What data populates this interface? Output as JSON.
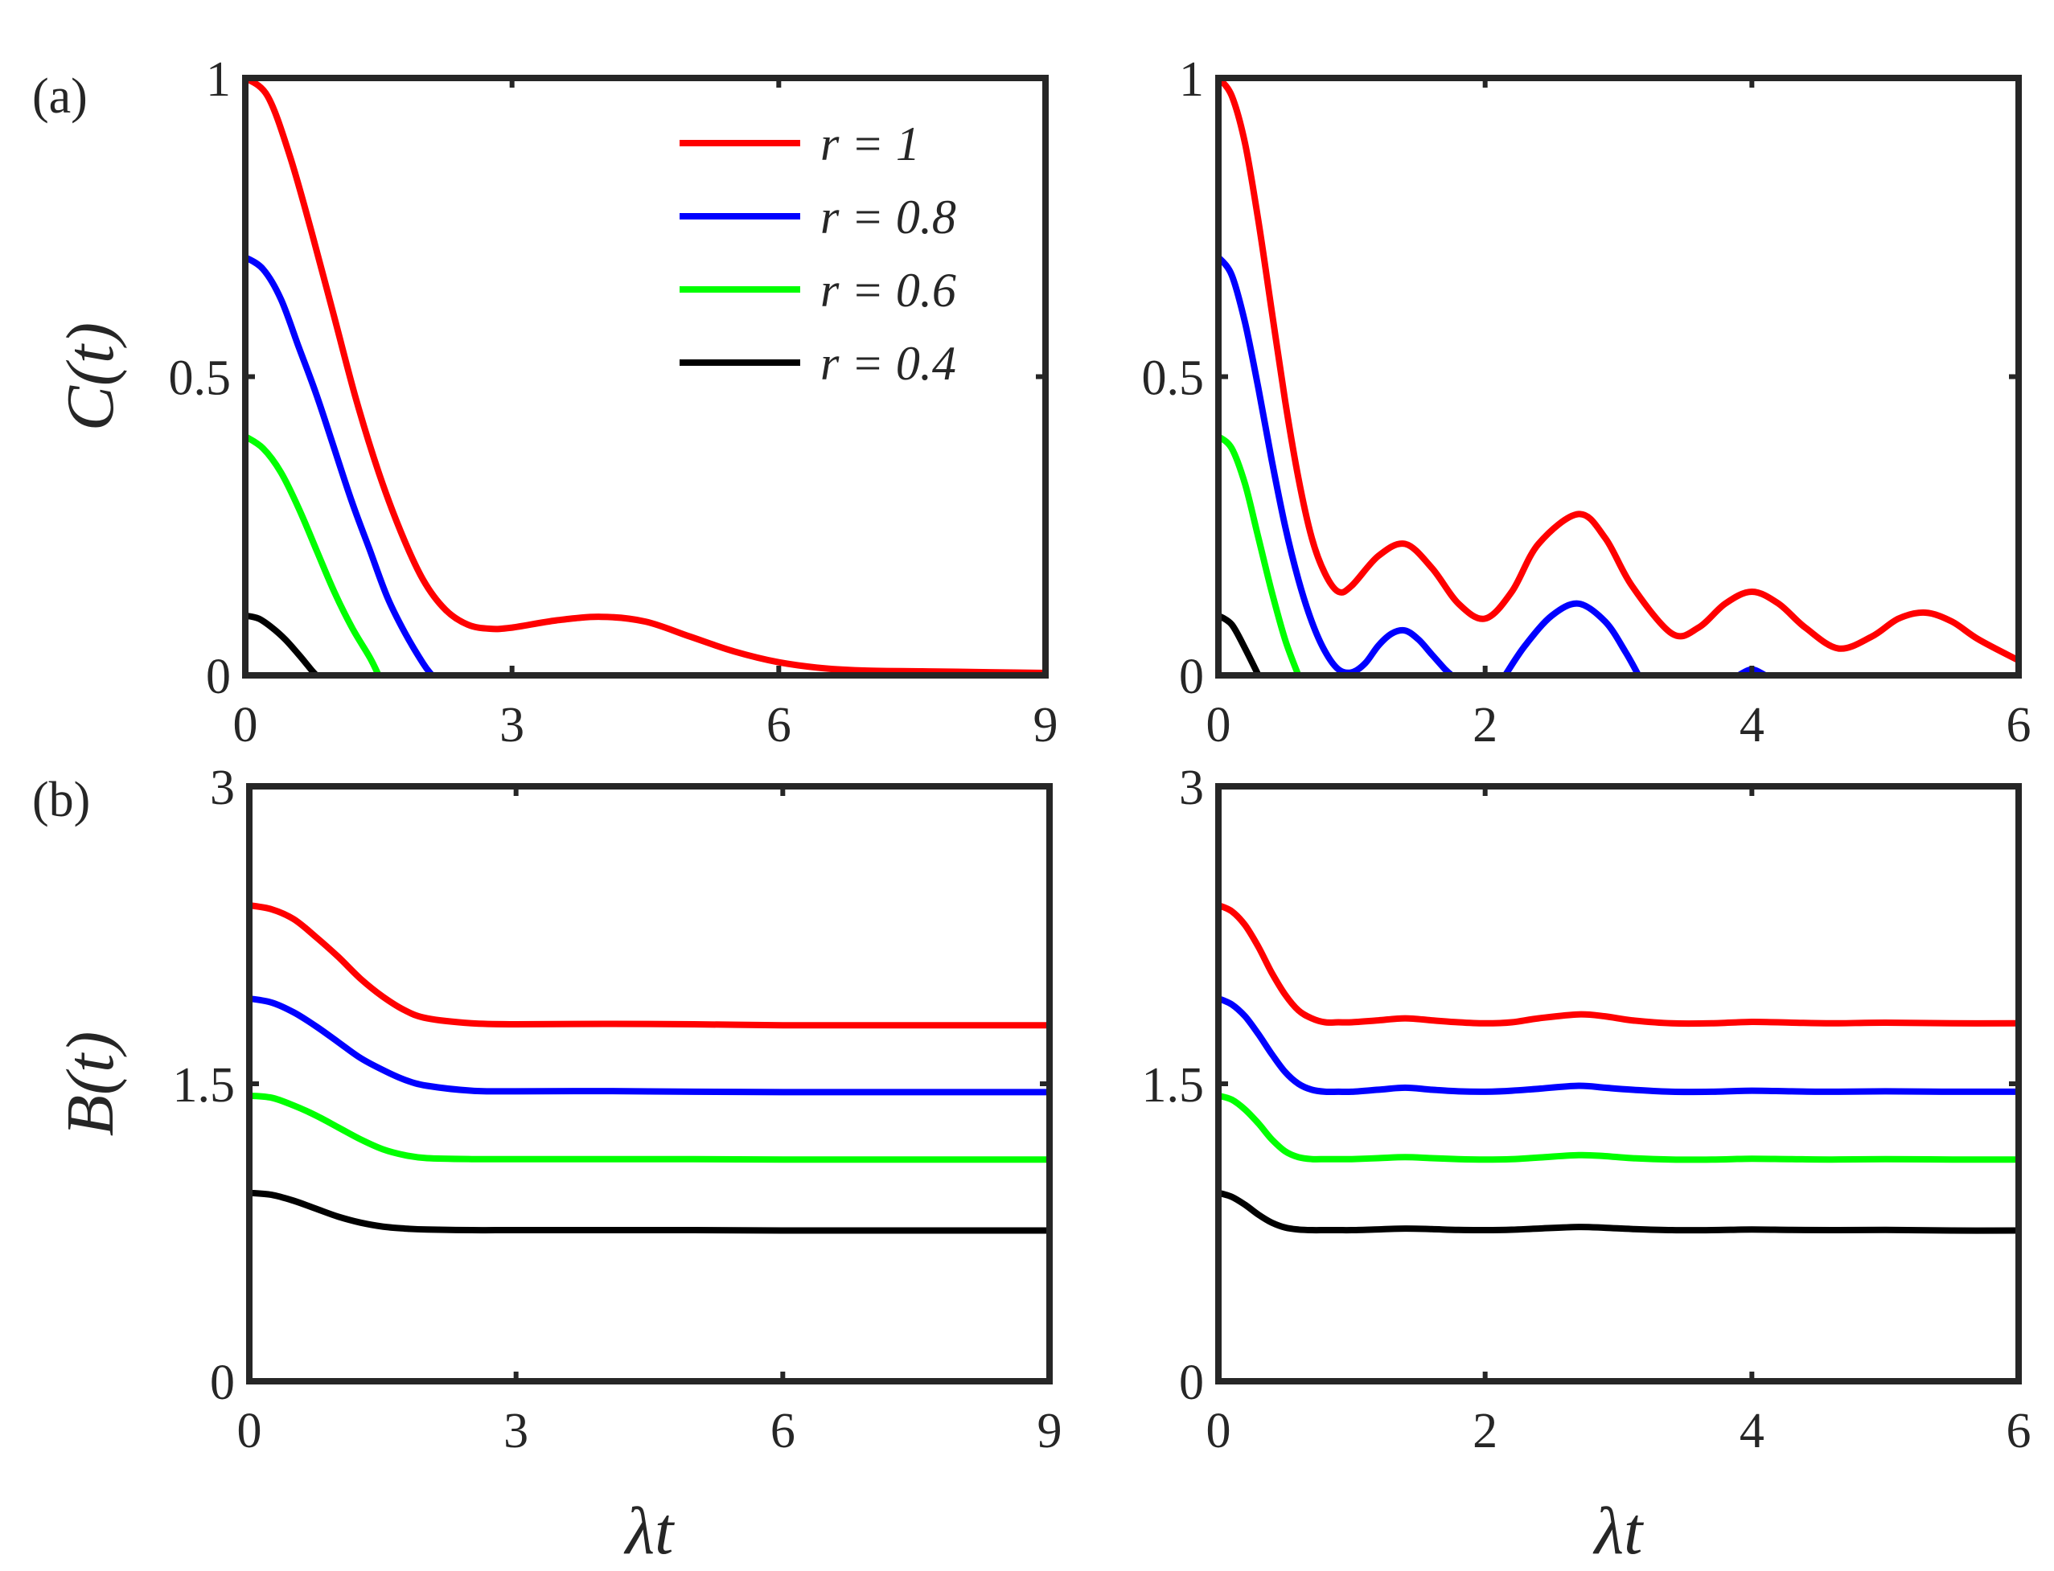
{
  "figure": {
    "panel_labels": [
      "(a)",
      "(b)"
    ],
    "legend": [
      {
        "label": "r = 1",
        "color": "#ff0000"
      },
      {
        "label": "r = 0.8",
        "color": "#0000ff"
      },
      {
        "label": "r = 0.6",
        "color": "#00ff00"
      },
      {
        "label": "r = 0.4",
        "color": "#000000"
      }
    ]
  },
  "chart_data": [
    {
      "id": "a-left",
      "type": "line",
      "ylabel": "C(t)",
      "xlabel": "",
      "xlim": [
        0,
        9
      ],
      "ylim": [
        0,
        1
      ],
      "xticks": [
        0,
        3,
        6,
        9
      ],
      "xtick_labels": [
        "0",
        "3",
        "6",
        "9"
      ],
      "yticks": [
        0,
        0.5,
        1
      ],
      "ytick_labels": [
        "0",
        "0.5",
        "1"
      ],
      "series": [
        {
          "name": "r = 1",
          "color": "#ff0000",
          "x": [
            0,
            0.25,
            0.5,
            0.75,
            1.0,
            1.25,
            1.5,
            1.75,
            2.0,
            2.25,
            2.5,
            2.75,
            3.0,
            3.5,
            4.0,
            4.5,
            5.0,
            5.5,
            6.0,
            6.5,
            7.0,
            8.0,
            9.0
          ],
          "y": [
            1.0,
            0.97,
            0.87,
            0.74,
            0.6,
            0.46,
            0.34,
            0.24,
            0.16,
            0.11,
            0.085,
            0.078,
            0.08,
            0.092,
            0.098,
            0.09,
            0.065,
            0.04,
            0.022,
            0.012,
            0.008,
            0.006,
            0.004
          ]
        },
        {
          "name": "r = 0.8",
          "color": "#0000ff",
          "x": [
            0,
            0.2,
            0.4,
            0.6,
            0.8,
            1.0,
            1.2,
            1.4,
            1.6,
            1.8,
            2.0,
            2.1
          ],
          "y": [
            0.7,
            0.68,
            0.63,
            0.55,
            0.47,
            0.38,
            0.29,
            0.21,
            0.13,
            0.07,
            0.02,
            0.0
          ]
        },
        {
          "name": "r = 0.6",
          "color": "#00ff00",
          "x": [
            0,
            0.2,
            0.4,
            0.6,
            0.8,
            1.0,
            1.2,
            1.4,
            1.5
          ],
          "y": [
            0.4,
            0.38,
            0.34,
            0.28,
            0.21,
            0.14,
            0.08,
            0.03,
            0.0
          ]
        },
        {
          "name": "r = 0.4",
          "color": "#000000",
          "x": [
            0,
            0.15,
            0.3,
            0.45,
            0.6,
            0.75,
            0.8
          ],
          "y": [
            0.1,
            0.095,
            0.08,
            0.06,
            0.035,
            0.008,
            0.0
          ]
        }
      ]
    },
    {
      "id": "a-right",
      "type": "line",
      "ylabel": "",
      "xlabel": "",
      "xlim": [
        0,
        6
      ],
      "ylim": [
        0,
        1
      ],
      "xticks": [
        0,
        2,
        4,
        6
      ],
      "xtick_labels": [
        "0",
        "2",
        "4",
        "6"
      ],
      "yticks": [
        0,
        0.5,
        1
      ],
      "ytick_labels": [
        "0",
        "0.5",
        "1"
      ],
      "series": [
        {
          "name": "r = 1",
          "color": "#ff0000",
          "x": [
            0,
            0.1,
            0.2,
            0.3,
            0.4,
            0.5,
            0.6,
            0.7,
            0.8,
            0.9,
            1.0,
            1.2,
            1.4,
            1.6,
            1.8,
            2.0,
            2.2,
            2.4,
            2.7,
            2.9,
            3.1,
            3.4,
            3.6,
            3.8,
            4.0,
            4.2,
            4.4,
            4.65,
            4.9,
            5.1,
            5.3,
            5.5,
            5.7,
            6.0
          ],
          "y": [
            1.0,
            0.97,
            0.89,
            0.76,
            0.61,
            0.46,
            0.33,
            0.23,
            0.17,
            0.14,
            0.15,
            0.2,
            0.22,
            0.18,
            0.12,
            0.095,
            0.14,
            0.22,
            0.27,
            0.23,
            0.15,
            0.07,
            0.08,
            0.12,
            0.14,
            0.12,
            0.08,
            0.045,
            0.065,
            0.095,
            0.105,
            0.09,
            0.06,
            0.025
          ]
        },
        {
          "name": "r = 0.8",
          "color": "#0000ff",
          "x": [
            0,
            0.1,
            0.2,
            0.3,
            0.4,
            0.5,
            0.6,
            0.7,
            0.8,
            0.9,
            1.0,
            1.1,
            1.2,
            1.3,
            1.4,
            1.5,
            1.6,
            1.7,
            1.75
          ],
          "y": [
            0.7,
            0.67,
            0.59,
            0.48,
            0.36,
            0.25,
            0.16,
            0.09,
            0.04,
            0.01,
            0.005,
            0.02,
            0.05,
            0.07,
            0.075,
            0.06,
            0.035,
            0.01,
            0.0
          ]
        },
        {
          "name": "r = 0.8",
          "color": "#0000ff",
          "x": [
            2.15,
            2.3,
            2.5,
            2.7,
            2.9,
            3.05,
            3.15
          ],
          "y": [
            0.0,
            0.05,
            0.1,
            0.12,
            0.09,
            0.04,
            0.0
          ]
        },
        {
          "name": "r = 0.8",
          "color": "#0000ff",
          "x": [
            3.9,
            4.0,
            4.1
          ],
          "y": [
            0.0,
            0.01,
            0.0
          ]
        },
        {
          "name": "r = 0.6",
          "color": "#00ff00",
          "x": [
            0,
            0.1,
            0.2,
            0.3,
            0.4,
            0.5,
            0.6
          ],
          "y": [
            0.4,
            0.38,
            0.32,
            0.23,
            0.14,
            0.06,
            0.0
          ]
        },
        {
          "name": "r = 0.4",
          "color": "#000000",
          "x": [
            0,
            0.1,
            0.2,
            0.3
          ],
          "y": [
            0.1,
            0.085,
            0.045,
            0.0
          ]
        }
      ]
    },
    {
      "id": "b-left",
      "type": "line",
      "ylabel": "B(t)",
      "xlabel": "λt",
      "xlim": [
        0,
        9
      ],
      "ylim": [
        0,
        3
      ],
      "xticks": [
        0,
        3,
        6,
        9
      ],
      "xtick_labels": [
        "0",
        "3",
        "6",
        "9"
      ],
      "yticks": [
        0,
        1.5,
        3
      ],
      "ytick_labels": [
        "0",
        "1.5",
        "3"
      ],
      "series": [
        {
          "name": "r = 1",
          "color": "#ff0000",
          "x": [
            0,
            0.25,
            0.5,
            0.75,
            1.0,
            1.25,
            1.5,
            1.75,
            2.0,
            2.5,
            3.0,
            4.0,
            5.0,
            6.0,
            7.0,
            8.0,
            9.0
          ],
          "y": [
            2.4,
            2.38,
            2.33,
            2.24,
            2.14,
            2.03,
            1.94,
            1.87,
            1.83,
            1.805,
            1.8,
            1.802,
            1.8,
            1.795,
            1.795,
            1.795,
            1.795
          ]
        },
        {
          "name": "r = 0.8",
          "color": "#0000ff",
          "x": [
            0,
            0.25,
            0.5,
            0.75,
            1.0,
            1.25,
            1.5,
            1.75,
            2.0,
            2.5,
            3.0,
            4.0,
            5.0,
            6.0,
            7.0,
            8.0,
            9.0
          ],
          "y": [
            1.93,
            1.91,
            1.86,
            1.79,
            1.71,
            1.63,
            1.57,
            1.52,
            1.49,
            1.465,
            1.462,
            1.463,
            1.46,
            1.458,
            1.458,
            1.458,
            1.458
          ]
        },
        {
          "name": "r = 0.6",
          "color": "#00ff00",
          "x": [
            0,
            0.25,
            0.5,
            0.75,
            1.0,
            1.25,
            1.5,
            1.75,
            2.0,
            2.5,
            3.0,
            4.0,
            5.0,
            6.0,
            7.0,
            8.0,
            9.0
          ],
          "y": [
            1.44,
            1.43,
            1.39,
            1.34,
            1.28,
            1.22,
            1.17,
            1.14,
            1.125,
            1.12,
            1.12,
            1.12,
            1.12,
            1.118,
            1.118,
            1.118,
            1.118
          ]
        },
        {
          "name": "r = 0.4",
          "color": "#000000",
          "x": [
            0,
            0.25,
            0.5,
            0.75,
            1.0,
            1.25,
            1.5,
            1.75,
            2.0,
            2.5,
            3.0,
            4.0,
            5.0,
            6.0,
            7.0,
            8.0,
            9.0
          ],
          "y": [
            0.95,
            0.94,
            0.91,
            0.87,
            0.83,
            0.8,
            0.78,
            0.77,
            0.765,
            0.762,
            0.762,
            0.762,
            0.762,
            0.76,
            0.76,
            0.76,
            0.76
          ]
        }
      ]
    },
    {
      "id": "b-right",
      "type": "line",
      "ylabel": "",
      "xlabel": "λt",
      "xlim": [
        0,
        6
      ],
      "ylim": [
        0,
        3
      ],
      "xticks": [
        0,
        2,
        4,
        6
      ],
      "xtick_labels": [
        "0",
        "2",
        "4",
        "6"
      ],
      "yticks": [
        0,
        1.5,
        3
      ],
      "ytick_labels": [
        "0",
        "1.5",
        "3"
      ],
      "series": [
        {
          "name": "r = 1",
          "color": "#ff0000",
          "x": [
            0,
            0.1,
            0.2,
            0.3,
            0.4,
            0.5,
            0.6,
            0.7,
            0.8,
            0.9,
            1.0,
            1.2,
            1.4,
            1.6,
            1.8,
            2.0,
            2.2,
            2.4,
            2.7,
            2.9,
            3.1,
            3.4,
            3.7,
            4.0,
            4.3,
            4.6,
            5.0,
            5.5,
            6.0
          ],
          "y": [
            2.4,
            2.37,
            2.3,
            2.19,
            2.06,
            1.95,
            1.87,
            1.83,
            1.81,
            1.81,
            1.81,
            1.82,
            1.83,
            1.82,
            1.81,
            1.805,
            1.81,
            1.83,
            1.85,
            1.84,
            1.82,
            1.805,
            1.805,
            1.812,
            1.808,
            1.805,
            1.808,
            1.805,
            1.805
          ]
        },
        {
          "name": "r = 0.8",
          "color": "#0000ff",
          "x": [
            0,
            0.1,
            0.2,
            0.3,
            0.4,
            0.5,
            0.6,
            0.7,
            0.8,
            0.9,
            1.0,
            1.2,
            1.4,
            1.6,
            1.8,
            2.0,
            2.2,
            2.4,
            2.7,
            2.9,
            3.1,
            3.4,
            3.7,
            4.0,
            4.3,
            4.6,
            5.0,
            5.5,
            6.0
          ],
          "y": [
            1.93,
            1.9,
            1.84,
            1.75,
            1.65,
            1.56,
            1.5,
            1.47,
            1.46,
            1.46,
            1.46,
            1.47,
            1.48,
            1.47,
            1.462,
            1.46,
            1.465,
            1.475,
            1.49,
            1.48,
            1.47,
            1.46,
            1.46,
            1.465,
            1.462,
            1.46,
            1.462,
            1.46,
            1.46
          ]
        },
        {
          "name": "r = 0.6",
          "color": "#00ff00",
          "x": [
            0,
            0.1,
            0.2,
            0.3,
            0.4,
            0.5,
            0.6,
            0.7,
            0.8,
            0.9,
            1.0,
            1.2,
            1.4,
            1.6,
            1.8,
            2.0,
            2.2,
            2.4,
            2.7,
            2.9,
            3.1,
            3.4,
            3.7,
            4.0,
            4.3,
            4.6,
            5.0,
            5.5,
            6.0
          ],
          "y": [
            1.44,
            1.42,
            1.37,
            1.3,
            1.22,
            1.16,
            1.13,
            1.12,
            1.12,
            1.12,
            1.12,
            1.125,
            1.13,
            1.125,
            1.12,
            1.118,
            1.12,
            1.128,
            1.14,
            1.135,
            1.125,
            1.118,
            1.118,
            1.122,
            1.12,
            1.118,
            1.12,
            1.118,
            1.118
          ]
        },
        {
          "name": "r = 0.4",
          "color": "#000000",
          "x": [
            0,
            0.1,
            0.2,
            0.3,
            0.4,
            0.5,
            0.6,
            0.7,
            0.8,
            0.9,
            1.0,
            1.2,
            1.4,
            1.6,
            1.8,
            2.0,
            2.2,
            2.4,
            2.7,
            2.9,
            3.1,
            3.4,
            3.7,
            4.0,
            4.3,
            4.6,
            5.0,
            5.5,
            6.0
          ],
          "y": [
            0.95,
            0.93,
            0.89,
            0.84,
            0.8,
            0.775,
            0.765,
            0.762,
            0.762,
            0.762,
            0.762,
            0.766,
            0.77,
            0.767,
            0.763,
            0.762,
            0.764,
            0.77,
            0.778,
            0.774,
            0.768,
            0.762,
            0.762,
            0.765,
            0.763,
            0.762,
            0.763,
            0.76,
            0.76
          ]
        }
      ]
    }
  ]
}
